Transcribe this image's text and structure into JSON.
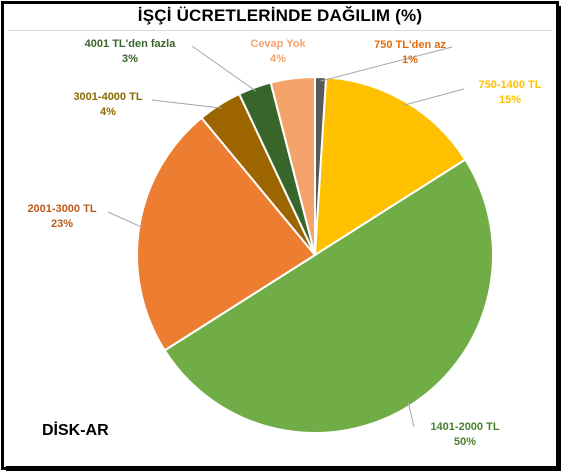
{
  "title": "İŞÇİ ÜCRETLERİNDE DAĞILIM (%)",
  "source": "DİSK-AR",
  "chart_data": {
    "type": "pie",
    "start_angle_deg": 0,
    "direction": "clockwise",
    "slices": [
      {
        "label": "750 TL'den az",
        "value": 1,
        "value_label": "1%",
        "color": "#595959",
        "label_color": "#e26b0a"
      },
      {
        "label": "750-1400 TL",
        "value": 15,
        "value_label": "15%",
        "color": "#ffc000",
        "label_color": "#ffc000"
      },
      {
        "label": "1401-2000 TL",
        "value": 50,
        "value_label": "50%",
        "color": "#70ad47",
        "label_color": "#4a7f2c"
      },
      {
        "label": "2001-3000 TL",
        "value": 23,
        "value_label": "23%",
        "color": "#ed7d31",
        "label_color": "#b85c1b"
      },
      {
        "label": "3001-4000 TL",
        "value": 4,
        "value_label": "4%",
        "color": "#9c6500",
        "label_color": "#8a6a00"
      },
      {
        "label": "4001 TL'den fazla",
        "value": 3,
        "value_label": "3%",
        "color": "#38662a",
        "label_color": "#38662a"
      },
      {
        "label": "Cevap Yok",
        "value": 4,
        "value_label": "4%",
        "color": "#f4a46b",
        "label_color": "#f4a46b"
      }
    ]
  }
}
